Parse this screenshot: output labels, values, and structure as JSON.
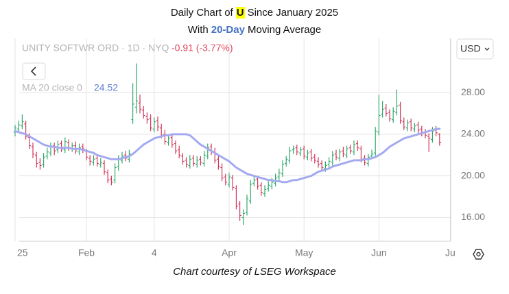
{
  "chart_data": {
    "type": "ohlc",
    "title_prefix": "Daily Chart of",
    "ticker": "U",
    "title_suffix": "Since January 2025",
    "subtitle_prefix": "With",
    "subtitle_period": "20-Day",
    "subtitle_suffix": "Moving Average",
    "instrument": "UNITY SOFTWR ORD · 1D · NYQ",
    "change": "-0.91 (-3.77%)",
    "currency": "USD",
    "footer": "Chart courtesy of LSEG Workspace",
    "up_color": "#2eaa6a",
    "down_color": "#d3375c",
    "grid": true,
    "ylim": [
      13.73,
      33.2
    ],
    "yticks": [
      {
        "value": 16,
        "label": "16.00"
      },
      {
        "value": 20,
        "label": "20.00"
      },
      {
        "value": 24,
        "label": "24.00"
      },
      {
        "value": 28,
        "label": "28.00"
      }
    ],
    "categories": [
      "25",
      null,
      null,
      null,
      null,
      null,
      null,
      null,
      null,
      null,
      null,
      null,
      null,
      null,
      null,
      null,
      null,
      null,
      null,
      null,
      "Feb",
      null,
      null,
      null,
      null,
      null,
      null,
      null,
      null,
      null,
      null,
      null,
      null,
      null,
      null,
      null,
      null,
      null,
      null,
      "4",
      null,
      null,
      null,
      null,
      null,
      null,
      null,
      null,
      null,
      null,
      null,
      null,
      null,
      null,
      null,
      null,
      null,
      null,
      null,
      null,
      "Apr",
      null,
      null,
      null,
      null,
      null,
      null,
      null,
      null,
      null,
      null,
      null,
      null,
      null,
      null,
      null,
      null,
      null,
      null,
      null,
      null,
      "May",
      null,
      null,
      null,
      null,
      null,
      null,
      null,
      null,
      null,
      null,
      null,
      null,
      null,
      null,
      null,
      null,
      null,
      null,
      null,
      null,
      "Jun",
      null,
      null,
      null,
      null,
      null,
      null,
      null,
      null,
      null,
      null,
      null,
      null,
      null,
      null,
      null,
      null,
      null,
      null,
      null,
      "Ju"
    ],
    "open": [
      24.2,
      24.5,
      24.8,
      25.0,
      23.7,
      22.8,
      22.0,
      21.3,
      21.1,
      21.9,
      22.2,
      22.9,
      22.5,
      23.1,
      22.5,
      23.2,
      22.6,
      22.9,
      22.3,
      22.8,
      22.4,
      21.7,
      21.3,
      21.7,
      21.1,
      21.2,
      20.3,
      19.7,
      19.6,
      20.9,
      21.5,
      22.0,
      21.6,
      25.4,
      26.6,
      27.0,
      26.3,
      25.7,
      25.5,
      24.5,
      25.3,
      24.6,
      24.0,
      23.2,
      23.7,
      23.1,
      22.5,
      21.9,
      21.5,
      21.0,
      21.7,
      21.1,
      21.6,
      21.2,
      21.9,
      22.8,
      22.3,
      21.6,
      20.8,
      19.9,
      19.2,
      19.8,
      18.8,
      17.3,
      16.0,
      16.5,
      17.6,
      19.3,
      19.7,
      19.1,
      18.3,
      18.8,
      19.0,
      19.3,
      19.9,
      20.2,
      21.2,
      21.5,
      22.5,
      22.7,
      22.2,
      22.6,
      21.8,
      22.3,
      21.8,
      21.4,
      21.2,
      20.7,
      21.1,
      21.3,
      22.1,
      21.7,
      22.4,
      22.0,
      22.7,
      22.3,
      23.1,
      22.6,
      21.7,
      21.2,
      21.9,
      22.2,
      24.2,
      25.9,
      26.5,
      26.1,
      25.4,
      26.1,
      26.8,
      25.2,
      24.6,
      25.2,
      24.5,
      24.9,
      24.5,
      24.2,
      23.8,
      23.5,
      24.4,
      24.0,
      null,
      null,
      null
    ],
    "high": [
      24.9,
      25.3,
      25.9,
      25.3,
      24.1,
      23.2,
      22.3,
      21.7,
      22.2,
      22.7,
      23.2,
      23.2,
      23.4,
      23.4,
      23.7,
      23.5,
      23.2,
      23.3,
      23.1,
      23.1,
      22.6,
      22.0,
      22.0,
      22.0,
      21.7,
      21.5,
      20.6,
      20.0,
      21.2,
      22.0,
      22.3,
      22.4,
      22.5,
      28.9,
      30.8,
      27.8,
      26.7,
      26.1,
      25.9,
      25.6,
      25.7,
      25.0,
      24.4,
      24.0,
      24.0,
      23.4,
      22.9,
      22.2,
      21.8,
      22.0,
      22.0,
      21.9,
      21.9,
      22.4,
      23.1,
      23.1,
      22.7,
      21.9,
      21.2,
      20.2,
      20.3,
      20.1,
      19.1,
      17.6,
      16.8,
      18.2,
      19.6,
      20.0,
      20.0,
      19.4,
      19.1,
      19.5,
      19.8,
      20.2,
      20.7,
      21.5,
      21.9,
      22.8,
      22.9,
      23.0,
      22.8,
      22.9,
      22.5,
      22.6,
      22.1,
      21.8,
      21.5,
      21.4,
      21.8,
      22.4,
      22.5,
      22.6,
      22.8,
      22.9,
      23.0,
      23.4,
      23.4,
      22.9,
      22.0,
      22.1,
      22.5,
      24.7,
      27.8,
      27.2,
      26.9,
      26.4,
      26.6,
      28.3,
      27.1,
      25.6,
      25.4,
      25.5,
      25.1,
      25.2,
      24.8,
      24.5,
      24.1,
      24.7,
      24.8,
      24.1,
      null,
      null,
      null
    ],
    "low": [
      23.8,
      24.1,
      24.5,
      23.5,
      22.6,
      21.7,
      20.8,
      20.6,
      20.8,
      21.6,
      21.9,
      22.0,
      22.2,
      22.3,
      22.2,
      22.4,
      22.3,
      22.1,
      22.0,
      22.2,
      21.5,
      21.0,
      21.0,
      20.9,
      20.8,
      20.1,
      19.3,
      19.1,
      19.3,
      20.5,
      21.2,
      21.4,
      21.3,
      25.0,
      26.0,
      26.0,
      25.5,
      25.0,
      24.3,
      24.2,
      24.3,
      23.6,
      23.0,
      22.9,
      22.7,
      22.1,
      21.7,
      21.1,
      20.8,
      20.7,
      20.9,
      20.8,
      21.0,
      20.9,
      21.6,
      22.0,
      21.2,
      20.6,
      19.5,
      19.1,
      18.9,
      18.6,
      16.8,
      15.7,
      15.3,
      16.2,
      17.3,
      19.0,
      18.7,
      18.1,
      18.0,
      18.5,
      18.7,
      19.0,
      19.6,
      19.9,
      20.9,
      21.2,
      22.1,
      22.0,
      21.9,
      21.6,
      21.5,
      21.4,
      21.2,
      20.8,
      20.5,
      20.4,
      20.8,
      21.0,
      21.5,
      21.4,
      21.8,
      21.7,
      22.1,
      22.0,
      22.4,
      21.3,
      21.0,
      20.9,
      21.6,
      21.9,
      23.9,
      25.6,
      25.7,
      25.2,
      25.1,
      25.8,
      25.0,
      24.4,
      24.3,
      24.3,
      24.2,
      24.1,
      23.8,
      23.6,
      22.3,
      23.2,
      23.8,
      22.9,
      null,
      null,
      null
    ],
    "close": [
      24.6,
      24.9,
      25.2,
      23.8,
      22.9,
      22.1,
      21.2,
      21.0,
      21.8,
      22.3,
      22.8,
      22.4,
      23.0,
      22.6,
      23.3,
      22.7,
      22.9,
      22.4,
      22.7,
      22.6,
      21.8,
      21.4,
      21.6,
      21.2,
      21.3,
      20.4,
      19.6,
      19.4,
      20.8,
      21.6,
      21.9,
      21.7,
      22.1,
      26.9,
      27.2,
      26.4,
      25.8,
      25.4,
      24.6,
      25.2,
      24.7,
      23.9,
      23.3,
      23.6,
      23.0,
      22.4,
      22.0,
      21.4,
      21.1,
      21.6,
      21.2,
      21.5,
      21.3,
      22.0,
      22.7,
      22.4,
      21.5,
      20.9,
      19.8,
      19.4,
      19.9,
      18.9,
      17.1,
      16.2,
      16.4,
      17.8,
      19.2,
      19.6,
      19.0,
      18.4,
      18.7,
      19.1,
      19.4,
      19.8,
      20.3,
      21.1,
      21.6,
      22.4,
      22.6,
      22.3,
      22.5,
      21.9,
      22.2,
      21.7,
      21.5,
      21.1,
      20.8,
      21.0,
      21.4,
      22.0,
      21.8,
      22.3,
      22.1,
      22.6,
      22.4,
      23.0,
      22.7,
      21.6,
      21.3,
      21.8,
      22.1,
      24.3,
      25.8,
      26.4,
      26.0,
      25.5,
      26.2,
      26.7,
      25.3,
      24.7,
      25.1,
      24.6,
      24.8,
      24.4,
      24.1,
      23.9,
      23.6,
      24.3,
      24.14,
      23.23,
      null,
      null,
      null
    ],
    "ma": {
      "name": "MA 20 close 0",
      "color": "#a4aaf0",
      "values": [
        24.3,
        24.2,
        24.1,
        24.0,
        23.8,
        23.6,
        23.4,
        23.2,
        23.0,
        22.9,
        22.8,
        22.8,
        22.7,
        22.7,
        22.7,
        22.7,
        22.6,
        22.6,
        22.6,
        22.5,
        22.4,
        22.3,
        22.2,
        22.0,
        21.9,
        21.8,
        21.7,
        21.6,
        21.6,
        21.6,
        21.7,
        21.8,
        21.9,
        22.1,
        22.4,
        22.7,
        23.0,
        23.2,
        23.4,
        23.6,
        23.7,
        23.8,
        23.9,
        23.9,
        24.0,
        24.0,
        24.0,
        24.0,
        24.0,
        23.9,
        23.6,
        23.3,
        23.0,
        22.8,
        22.6,
        22.4,
        22.2,
        22.0,
        21.8,
        21.6,
        21.4,
        21.1,
        20.8,
        20.6,
        20.4,
        20.2,
        20.1,
        20.0,
        19.9,
        19.8,
        19.7,
        19.6,
        19.6,
        19.5,
        19.5,
        19.4,
        19.4,
        19.5,
        19.6,
        19.6,
        19.7,
        19.8,
        19.9,
        20.0,
        20.2,
        20.4,
        20.5,
        20.6,
        20.7,
        20.9,
        21.0,
        21.1,
        21.2,
        21.3,
        21.4,
        21.5,
        21.5,
        21.5,
        21.6,
        21.6,
        21.7,
        21.8,
        22.0,
        22.2,
        22.5,
        22.8,
        23.0,
        23.2,
        23.4,
        23.6,
        23.7,
        23.8,
        23.9,
        24.0,
        24.1,
        24.2,
        24.3,
        24.4,
        24.5,
        24.52,
        null,
        null,
        null
      ]
    }
  }
}
